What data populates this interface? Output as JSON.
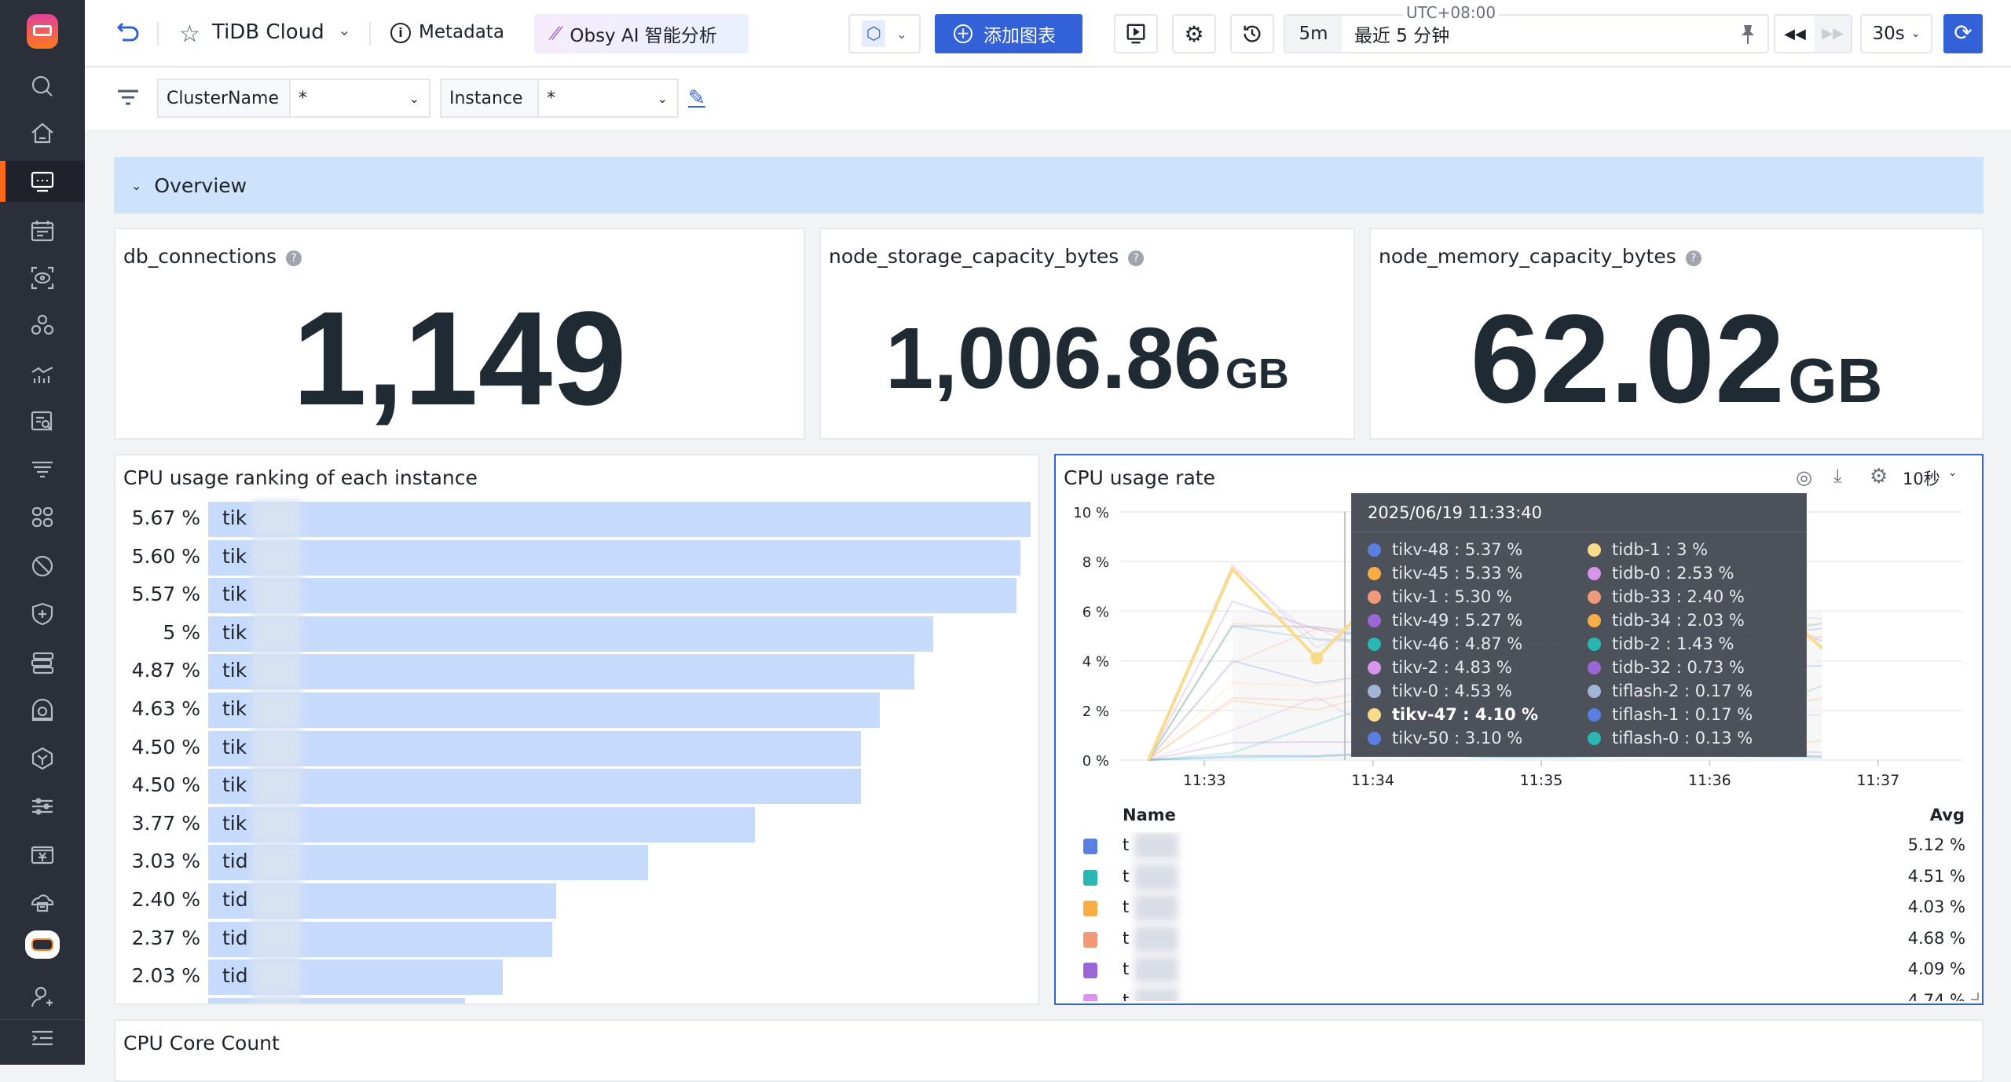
{
  "sidebar": {
    "items": [
      {
        "icon": "logo-icon"
      },
      {
        "icon": "search-icon"
      },
      {
        "icon": "home-icon"
      },
      {
        "icon": "dashboard-icon",
        "active": true
      },
      {
        "icon": "calendar-icon"
      },
      {
        "icon": "scan-icon"
      },
      {
        "icon": "cluster-icon"
      },
      {
        "icon": "metrics-icon"
      },
      {
        "icon": "log-search-icon"
      },
      {
        "icon": "filter-list-icon"
      },
      {
        "icon": "apps-icon"
      },
      {
        "icon": "disabled-icon"
      },
      {
        "icon": "shield-icon"
      },
      {
        "icon": "server-icon"
      },
      {
        "icon": "camera-icon"
      },
      {
        "icon": "cube-icon"
      },
      {
        "icon": "sliders-icon"
      },
      {
        "icon": "billing-icon"
      },
      {
        "icon": "cloud-icon"
      },
      {
        "icon": "robot-icon"
      },
      {
        "icon": "user-add-icon"
      },
      {
        "icon": "collapse-icon"
      }
    ],
    "accent": "#ff6a1a"
  },
  "header": {
    "workspace": "TiDB Cloud",
    "metadata": "Metadata",
    "ai_button": "Obsy AI 智能分析",
    "add_chart": "添加图表",
    "timezone": "UTC+08:00",
    "time_short": "5m",
    "time_range": "最近 5 分钟",
    "refresh_interval": "30s",
    "accent": "#3361d8"
  },
  "filters": [
    {
      "label": "ClusterName",
      "value": "*"
    },
    {
      "label": "Instance",
      "value": "*"
    }
  ],
  "section": {
    "title": "Overview"
  },
  "stats": [
    {
      "title": "db_connections",
      "value": "1,149",
      "unit": ""
    },
    {
      "title": "node_storage_capacity_bytes",
      "value": "1,006.86",
      "unit": "GB"
    },
    {
      "title": "node_memory_capacity_bytes",
      "value": "62.02",
      "unit": "GB"
    }
  ],
  "bottom_panel": {
    "title": "CPU Core Count"
  },
  "chart_data": [
    {
      "type": "bar",
      "title": "CPU usage ranking of each instance",
      "orientation": "horizontal",
      "value_labels": [
        "5.67 %",
        "5.60 %",
        "5.57 %",
        "5 %",
        "4.87 %",
        "4.63 %",
        "4.50 %",
        "4.50 %",
        "3.77 %",
        "3.03 %",
        "2.40 %",
        "2.37 %",
        "2.03 %",
        ""
      ],
      "values": [
        5.67,
        5.6,
        5.57,
        5.0,
        4.87,
        4.63,
        4.5,
        4.5,
        3.77,
        3.03,
        2.4,
        2.37,
        2.03,
        1.77
      ],
      "category_prefixes": [
        "tik",
        "tik",
        "tik",
        "tik",
        "tik",
        "tik",
        "tik",
        "tik",
        "tik",
        "tid",
        "tid",
        "tid",
        "tid",
        ""
      ],
      "bar_color": "#c6dafc"
    },
    {
      "type": "line",
      "title": "CPU usage rate",
      "step_label": "10秒",
      "ylim": [
        0,
        10
      ],
      "y_ticks": [
        "0 %",
        "2 %",
        "4 %",
        "6 %",
        "8 %",
        "10 %"
      ],
      "y_tick_values": [
        0,
        2,
        4,
        6,
        8,
        10
      ],
      "x_ticks": [
        "11:33",
        "11:34",
        "11:35",
        "11:36",
        "11:37"
      ],
      "xlim": [
        "11:32:30",
        "11:37:30"
      ],
      "x": [
        "11:32:40",
        "11:33:10",
        "11:33:40",
        "11:34:10",
        "11:34:40",
        "11:35:10",
        "11:35:40",
        "11:36:10",
        "11:36:40"
      ],
      "grid": true,
      "highlighted": "tikv-47",
      "tooltip": {
        "time": "2025/06/19 11:33:40"
      },
      "series": [
        {
          "name": "tikv-48",
          "color": "#5b7fe0",
          "tooltip": "5.37 %",
          "values": [
            0,
            5.4,
            5.37,
            4.8,
            4.6,
            4.9,
            4.3,
            5.0,
            5.3
          ]
        },
        {
          "name": "tikv-45",
          "color": "#f8ae45",
          "tooltip": "5.33 %",
          "values": [
            0,
            5.5,
            5.33,
            5.2,
            5.3,
            5.1,
            5.1,
            5.3,
            5.5
          ]
        },
        {
          "name": "tikv-1",
          "color": "#f09a7a",
          "tooltip": "5.30 %",
          "values": [
            0,
            3.9,
            5.3,
            3.9,
            4.5,
            4.2,
            3.5,
            4.0,
            5.0
          ]
        },
        {
          "name": "tikv-49",
          "color": "#9b66d6",
          "tooltip": "5.27 %",
          "values": [
            0,
            6.4,
            5.27,
            4.8,
            4.6,
            4.5,
            4.2,
            5.8,
            4.8
          ]
        },
        {
          "name": "tikv-46",
          "color": "#2ab6b3",
          "tooltip": "4.87 %",
          "values": [
            0,
            5.4,
            4.87,
            4.8,
            4.5,
            5.0,
            5.9,
            4.9,
            5.5
          ]
        },
        {
          "name": "tikv-2",
          "color": "#d795ec",
          "tooltip": "4.83 %",
          "values": [
            0,
            7.8,
            4.83,
            4.7,
            5.8,
            5.1,
            5.6,
            5.8,
            4.9
          ]
        },
        {
          "name": "tikv-0",
          "color": "#a3b5d6",
          "tooltip": "4.53 %",
          "values": [
            0,
            7.9,
            4.53,
            6.0,
            4.4,
            8.0,
            4.2,
            5.9,
            5.7
          ]
        },
        {
          "name": "tikv-47",
          "color": "#f9dc8b",
          "tooltip": "4.10 %",
          "values": [
            0,
            7.7,
            4.1,
            7.6,
            4.2,
            7.5,
            4.3,
            7.8,
            4.5
          ]
        },
        {
          "name": "tikv-50",
          "color": "#5b7fe0",
          "tooltip": "3.10 %",
          "values": [
            0,
            4.0,
            3.1,
            3.6,
            4.0,
            4.2,
            3.4,
            3.7,
            3.8
          ]
        },
        {
          "name": "tidb-1",
          "color": "#f9dc8b",
          "tooltip": "3 %",
          "values": [
            0,
            3.1,
            3,
            3.5,
            3.0,
            2.9,
            3.2,
            4.2,
            2.3
          ]
        },
        {
          "name": "tidb-0",
          "color": "#d795ec",
          "tooltip": "2.53 %",
          "values": [
            0,
            1.2,
            2.53,
            0.7,
            1.7,
            2.0,
            2.3,
            1.8,
            1.8
          ]
        },
        {
          "name": "tidb-33",
          "color": "#f09a7a",
          "tooltip": "2.40 %",
          "values": [
            0,
            2.5,
            2.4,
            3.0,
            2.9,
            3.0,
            3.0,
            1.8,
            2.5
          ]
        },
        {
          "name": "tidb-34",
          "color": "#f8ae45",
          "tooltip": "2.03 %",
          "values": [
            0,
            2.4,
            2.03,
            2.9,
            0.5,
            0.3,
            0.3,
            0.3,
            0.8
          ]
        },
        {
          "name": "tidb-2",
          "color": "#2ab6b3",
          "tooltip": "1.43 %",
          "values": [
            0,
            0.3,
            1.43,
            2.6,
            3.6,
            4.2,
            3.3,
            1.6,
            3.0
          ]
        },
        {
          "name": "tidb-32",
          "color": "#9b66d6",
          "tooltip": "0.73 %",
          "values": [
            0,
            0.7,
            0.73,
            0.7,
            0.8,
            0.2,
            0.2,
            0.5,
            0.3
          ]
        },
        {
          "name": "tiflash-2",
          "color": "#a3b5d6",
          "tooltip": "0.17 %",
          "values": [
            0,
            0.2,
            0.17,
            0.35,
            0.15,
            0.15,
            0.25,
            0.3,
            0.15
          ]
        },
        {
          "name": "tiflash-1",
          "color": "#5b7fe0",
          "tooltip": "0.17 %",
          "values": [
            0,
            0.15,
            0.17,
            0.3,
            0.15,
            0.15,
            0.2,
            0.2,
            0.15
          ]
        },
        {
          "name": "tiflash-0",
          "color": "#2ab6b3",
          "tooltip": "0.13 %",
          "values": [
            0,
            0.1,
            0.13,
            0.3,
            0.1,
            0.1,
            0.2,
            0.15,
            0.1
          ]
        }
      ],
      "legend_table": {
        "headers": [
          "Name",
          "Avg"
        ],
        "rows": [
          {
            "name": "t",
            "color": "#5b7fe0",
            "avg": "5.12 %"
          },
          {
            "name": "t",
            "color": "#2ab6b3",
            "avg": "4.51 %"
          },
          {
            "name": "t",
            "color": "#f8ae45",
            "avg": "4.03 %"
          },
          {
            "name": "t",
            "color": "#f09a7a",
            "avg": "4.68 %"
          },
          {
            "name": "t",
            "color": "#9b66d6",
            "avg": "4.09 %"
          },
          {
            "name": "t",
            "color": "#d795ec",
            "avg": "4.74 %"
          }
        ]
      }
    }
  ]
}
